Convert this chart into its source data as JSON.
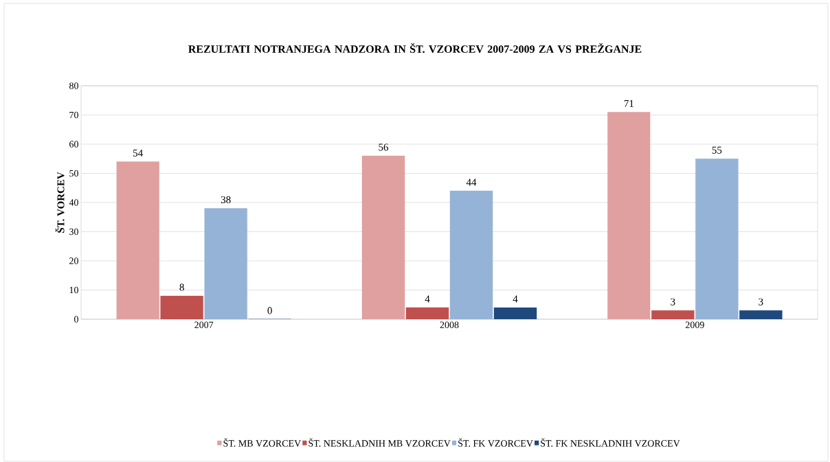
{
  "chart_data": {
    "type": "bar",
    "title": "REZULTATI NOTRANJEGA NADZORA IN ŠT. VZORCEV 2007-2009 ZA VS PREŽGANJE",
    "ylabel": "ŠT. VORCEV",
    "categories": [
      "2007",
      "2008",
      "2009"
    ],
    "series": [
      {
        "name": "ŠT. MB VZORCEV",
        "color": "#e0a09f",
        "values": [
          54,
          56,
          71
        ]
      },
      {
        "name": "ŠT. NESKLADNIH MB VZORCEV",
        "color": "#c0504d",
        "values": [
          8,
          4,
          3
        ]
      },
      {
        "name": "ŠT. FK VZORCEV",
        "color": "#95b3d7",
        "values": [
          38,
          44,
          55
        ]
      },
      {
        "name": "ŠT. FK NESKLADNIH VZORCEV",
        "color": "#1f497d",
        "values": [
          0,
          4,
          3
        ]
      }
    ],
    "ylim": [
      0,
      80
    ],
    "yticks": [
      0,
      10,
      20,
      30,
      40,
      50,
      60,
      70,
      80
    ],
    "grid": "y",
    "legend": "bottom",
    "data_labels": true
  }
}
